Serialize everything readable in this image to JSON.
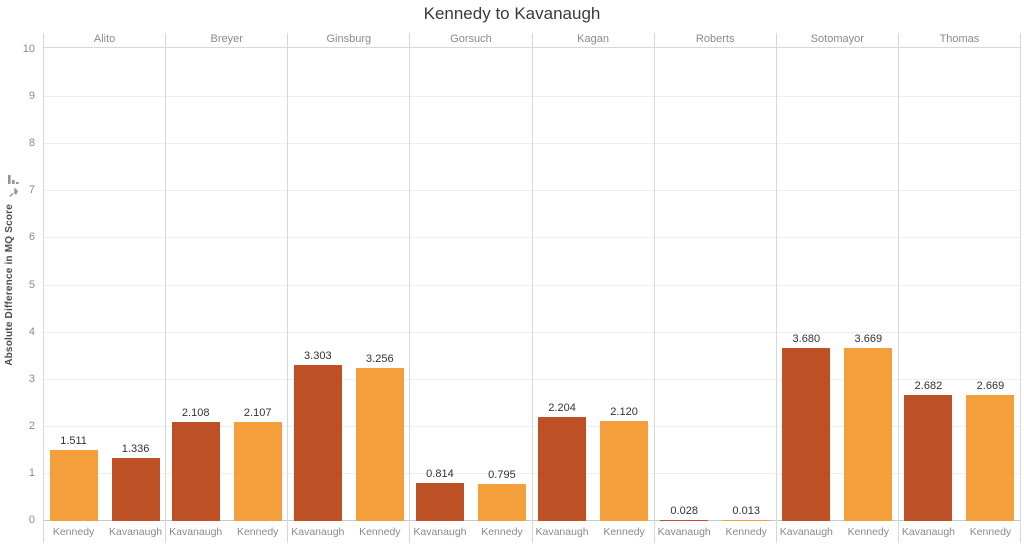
{
  "title": "Kennedy to Kavanaugh",
  "y_axis": {
    "label": "Absolute Difference in MQ Score",
    "axis_icons": [
      "sort-bars-icon",
      "pin-icon"
    ],
    "icon_color": "#8a97a3"
  },
  "colors": {
    "kennedy_bar": "#F49E3C",
    "kavanaugh_bar": "#BE5026",
    "gridline": "#eeeeee",
    "separator": "#d8d8d8",
    "label_gray": "#8a8a8a",
    "title_text": "#3a3a3a"
  },
  "chart_data": {
    "type": "bar",
    "title": "Kennedy to Kavanaugh",
    "xlabel": "",
    "ylabel": "Absolute Difference in MQ Score",
    "ylim": [
      0,
      10
    ],
    "yticks": [
      0,
      1,
      2,
      3,
      4,
      5,
      6,
      7,
      8,
      9,
      10
    ],
    "grid": true,
    "legend": null,
    "series_colors": {
      "Kennedy": "#F49E3C",
      "Kavanaugh": "#BE5026"
    },
    "panels": [
      {
        "justice": "Alito",
        "bars": [
          {
            "category": "Kennedy",
            "value": 1.511,
            "label": "1.511"
          },
          {
            "category": "Kavanaugh",
            "value": 1.336,
            "label": "1.336"
          }
        ]
      },
      {
        "justice": "Breyer",
        "bars": [
          {
            "category": "Kavanaugh",
            "value": 2.108,
            "label": "2.108"
          },
          {
            "category": "Kennedy",
            "value": 2.107,
            "label": "2.107"
          }
        ]
      },
      {
        "justice": "Ginsburg",
        "bars": [
          {
            "category": "Kavanaugh",
            "value": 3.303,
            "label": "3.303"
          },
          {
            "category": "Kennedy",
            "value": 3.256,
            "label": "3.256"
          }
        ]
      },
      {
        "justice": "Gorsuch",
        "bars": [
          {
            "category": "Kavanaugh",
            "value": 0.814,
            "label": "0.814"
          },
          {
            "category": "Kennedy",
            "value": 0.795,
            "label": "0.795"
          }
        ]
      },
      {
        "justice": "Kagan",
        "bars": [
          {
            "category": "Kavanaugh",
            "value": 2.204,
            "label": "2.204"
          },
          {
            "category": "Kennedy",
            "value": 2.12,
            "label": "2.120"
          }
        ]
      },
      {
        "justice": "Roberts",
        "bars": [
          {
            "category": "Kavanaugh",
            "value": 0.028,
            "label": "0.028"
          },
          {
            "category": "Kennedy",
            "value": 0.013,
            "label": "0.013"
          }
        ]
      },
      {
        "justice": "Sotomayor",
        "bars": [
          {
            "category": "Kavanaugh",
            "value": 3.68,
            "label": "3.680"
          },
          {
            "category": "Kennedy",
            "value": 3.669,
            "label": "3.669"
          }
        ]
      },
      {
        "justice": "Thomas",
        "bars": [
          {
            "category": "Kavanaugh",
            "value": 2.682,
            "label": "2.682"
          },
          {
            "category": "Kennedy",
            "value": 2.669,
            "label": "2.669"
          }
        ]
      }
    ]
  }
}
